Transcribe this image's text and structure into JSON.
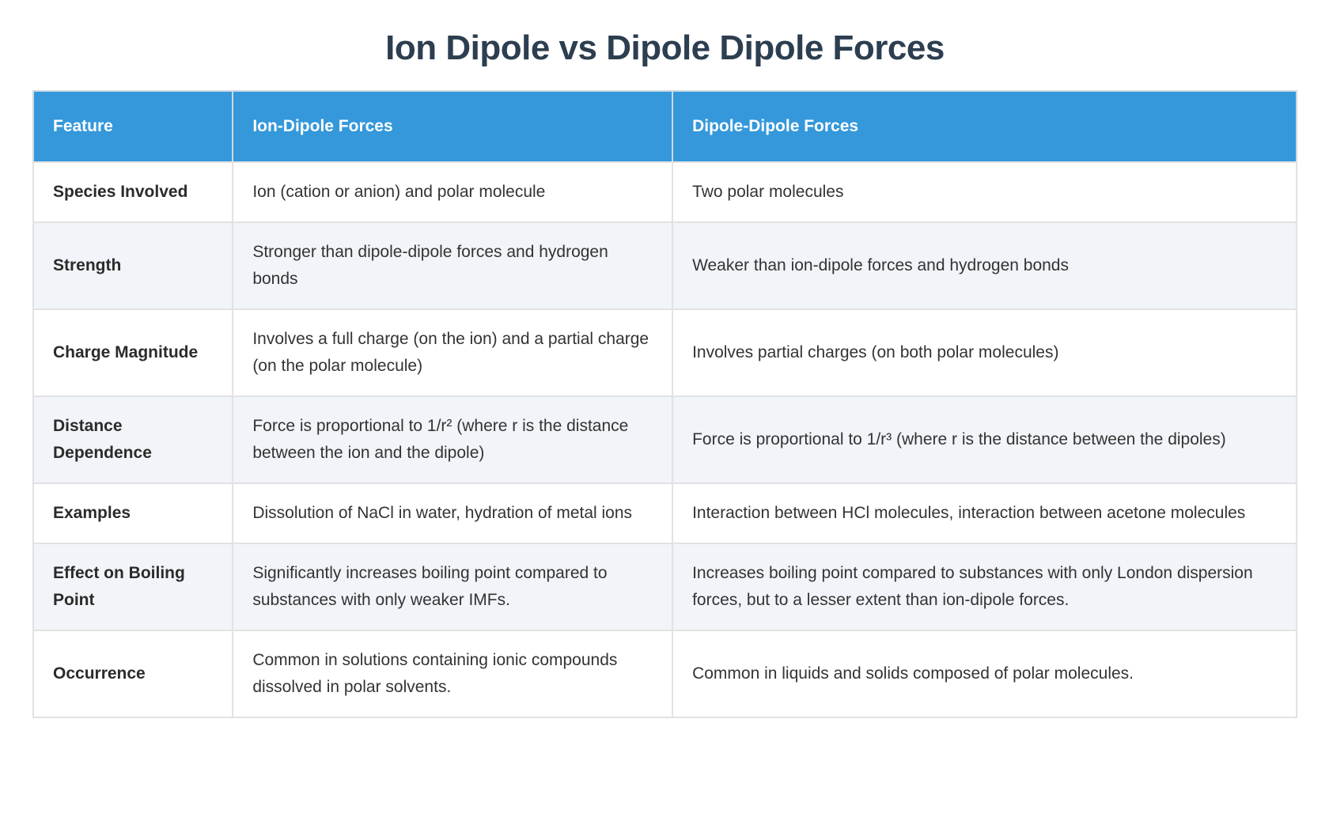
{
  "title": "Ion Dipole vs Dipole Dipole Forces",
  "colors": {
    "header_bg": "#3498db",
    "header_text": "#ffffff",
    "row_bg": "#ffffff",
    "row_alt_bg": "#f1f4f8",
    "border": "#e2e2e2",
    "title_text": "#2c3e50",
    "body_text": "#333333"
  },
  "table": {
    "columns": [
      "Feature",
      "Ion-Dipole Forces",
      "Dipole-Dipole Forces"
    ],
    "rows": [
      {
        "feature": "Species Involved",
        "ion_dipole": "Ion (cation or anion) and polar molecule",
        "dipole_dipole": "Two polar molecules"
      },
      {
        "feature": "Strength",
        "ion_dipole": "Stronger than dipole-dipole forces and hydrogen bonds",
        "dipole_dipole": "Weaker than ion-dipole forces and hydrogen bonds"
      },
      {
        "feature": "Charge Magnitude",
        "ion_dipole": "Involves a full charge (on the ion) and a partial charge (on the polar molecule)",
        "dipole_dipole": "Involves partial charges (on both polar molecules)"
      },
      {
        "feature": "Distance Dependence",
        "ion_dipole": "Force is proportional to 1/r² (where r is the distance between the ion and the dipole)",
        "dipole_dipole": "Force is proportional to 1/r³ (where r is the distance between the dipoles)"
      },
      {
        "feature": "Examples",
        "ion_dipole": "Dissolution of NaCl in water, hydration of metal ions",
        "dipole_dipole": "Interaction between HCl molecules, interaction between acetone molecules"
      },
      {
        "feature": "Effect on Boiling Point",
        "ion_dipole": "Significantly increases boiling point compared to substances with only weaker IMFs.",
        "dipole_dipole": "Increases boiling point compared to substances with only London dispersion forces, but to a lesser extent than ion-dipole forces."
      },
      {
        "feature": "Occurrence",
        "ion_dipole": "Common in solutions containing ionic compounds dissolved in polar solvents.",
        "dipole_dipole": "Common in liquids and solids composed of polar molecules."
      }
    ]
  }
}
